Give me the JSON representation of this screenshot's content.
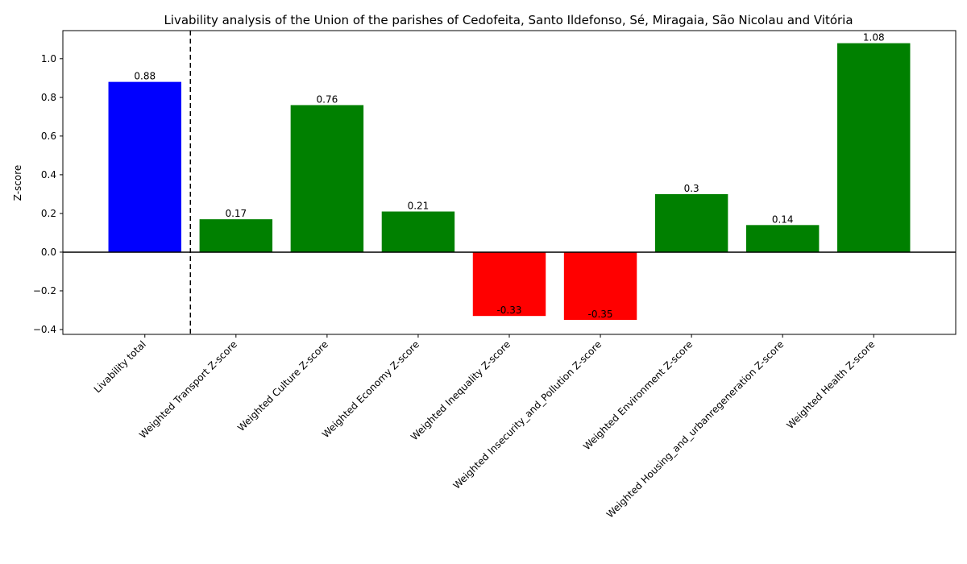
{
  "chart_data": {
    "type": "bar",
    "title": "Livability analysis of the Union of the parishes of Cedofeita, Santo Ildefonso, Sé, Miragaia, São Nicolau and Vitória",
    "xlabel": "",
    "ylabel": "Z-score",
    "categories": [
      "Livability total",
      "Weighted Transport Z-score",
      "Weighted Culture Z-score",
      "Weighted Economy Z-score",
      "Weighted Inequality Z-score",
      "Weighted Insecurity_and_Pollution Z-score",
      "Weighted Environment Z-score",
      "Weighted Housing_and_urbanregeneration Z-score",
      "Weighted Health Z-score"
    ],
    "values": [
      0.88,
      0.17,
      0.76,
      0.21,
      -0.33,
      -0.35,
      0.3,
      0.14,
      1.08
    ],
    "value_labels": [
      "0.88",
      "0.17",
      "0.76",
      "0.21",
      "-0.33",
      "-0.35",
      "0.3",
      "0.14",
      "1.08"
    ],
    "colors": [
      "#0000ff",
      "#008000",
      "#008000",
      "#008000",
      "#ff0000",
      "#ff0000",
      "#008000",
      "#008000",
      "#008000"
    ],
    "ylim": [
      -0.425,
      1.145
    ],
    "yticks": [
      -0.4,
      -0.2,
      0.0,
      0.2,
      0.4,
      0.6,
      0.8,
      1.0
    ],
    "ytick_labels": [
      "−0.4",
      "−0.2",
      "0.0",
      "0.2",
      "0.4",
      "0.6",
      "0.8",
      "1.0"
    ],
    "grid": false,
    "zero_line": true,
    "divider_after_category": 0
  }
}
